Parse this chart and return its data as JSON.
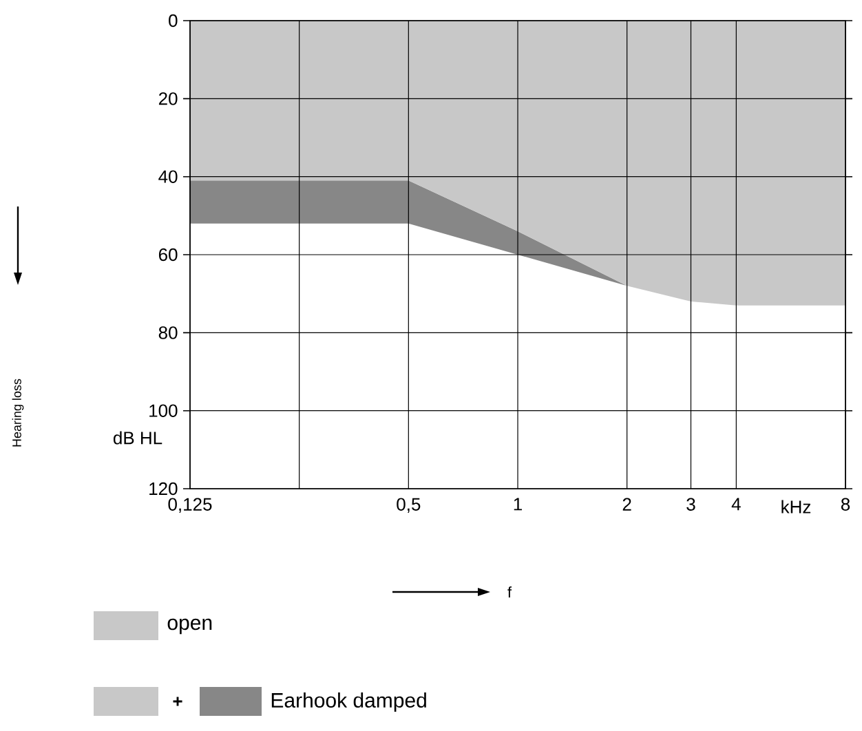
{
  "chart_data": {
    "type": "area",
    "stacked": true,
    "xlabel": "f",
    "log": "x",
    "grid": true,
    "legend": "bottom",
    "x": [
      0.125,
      0.5,
      1,
      2,
      3,
      4,
      8
    ],
    "series": [
      {
        "name": "open",
        "color": "#c8c8c8",
        "values": [
          41,
          41,
          54,
          68,
          72,
          73,
          73
        ]
      },
      {
        "name": "Earhook damped",
        "color": "#878787",
        "values": [
          11,
          11,
          6,
          0,
          0,
          0,
          0
        ]
      }
    ],
    "xlim": [
      0.125,
      8
    ],
    "ylim": [
      120,
      0
    ],
    "xticks": [
      {
        "value": 0.125,
        "label": "0,125"
      },
      {
        "value": 0.25,
        "label": null
      },
      {
        "value": 0.5,
        "label": "0,5"
      },
      1,
      2,
      3,
      4,
      8
    ],
    "yticks": [
      0,
      20,
      40,
      60,
      80,
      100,
      120
    ],
    "annotations": [
      "dB HL",
      "kHz",
      "+",
      "Hearing loss"
    ]
  }
}
